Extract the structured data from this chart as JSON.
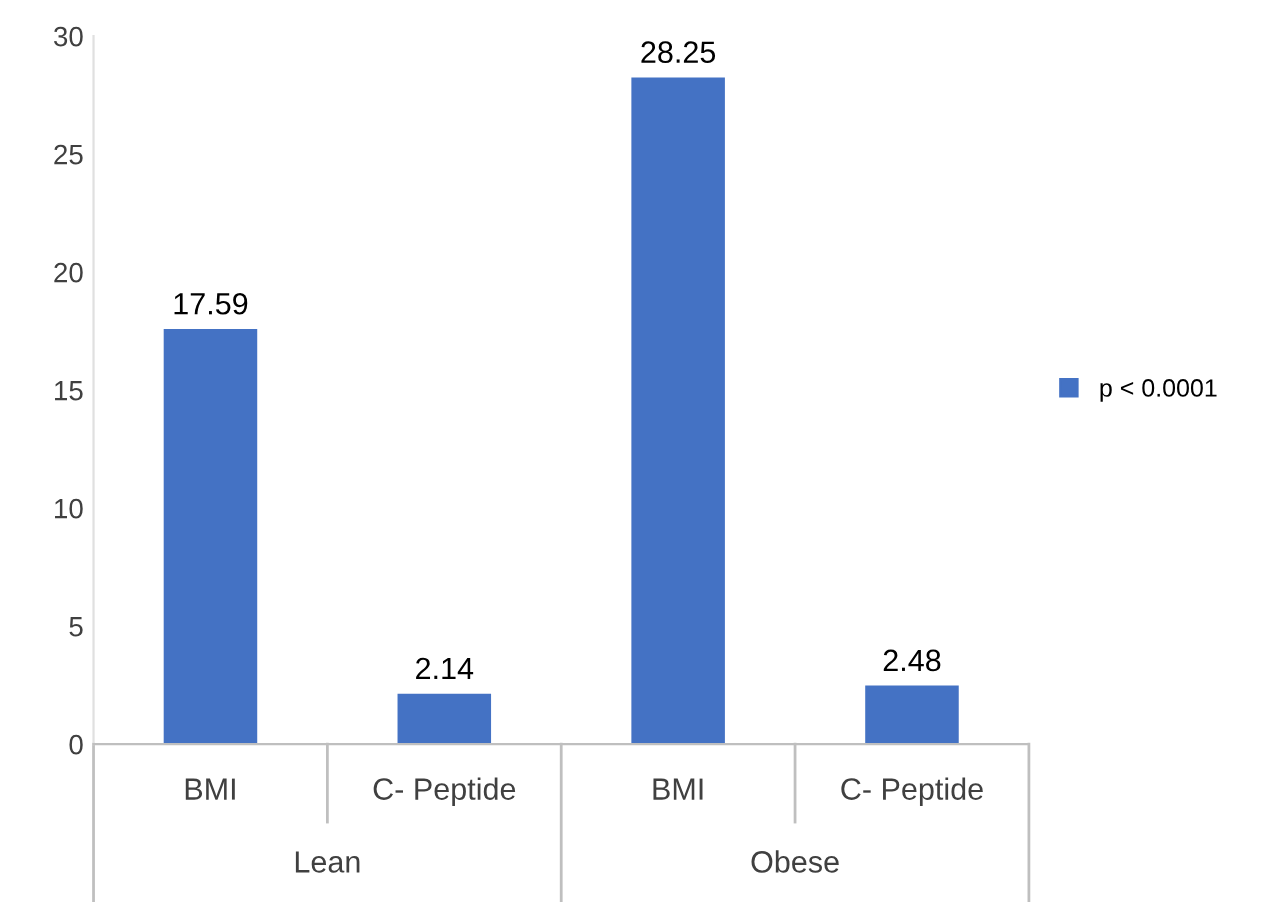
{
  "chart_data": {
    "type": "bar",
    "categories": [
      "BMI",
      "C- Peptide",
      "BMI",
      "C- Peptide"
    ],
    "series": [
      {
        "name": "p < 0.0001",
        "color": "#4472c4",
        "values": [
          17.59,
          2.14,
          28.25,
          2.48
        ]
      }
    ],
    "annotations": [
      "Lean",
      "Obese"
    ],
    "ylim": [
      0,
      30
    ],
    "yticks": [
      0,
      5,
      10,
      15,
      20,
      25,
      30
    ],
    "grid": false,
    "legend": "right",
    "data_labels": true
  }
}
